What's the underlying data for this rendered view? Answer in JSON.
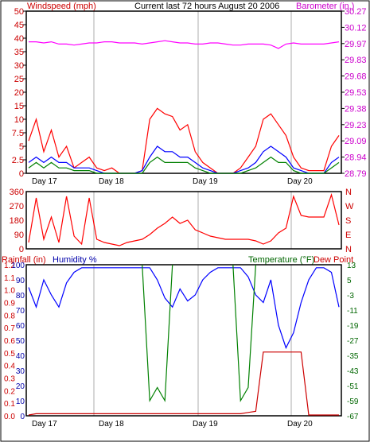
{
  "chart_data": [
    {
      "type": "line",
      "title": "Current last 72 hours August 20 2006",
      "left_axis": {
        "label": "Windspeed (mph)",
        "range": [
          0,
          50
        ],
        "ticks": [
          "0",
          "2.5",
          "5",
          "7.5",
          "10",
          "15",
          "20",
          "25",
          "30",
          "35",
          "40",
          "45",
          "50"
        ]
      },
      "right_axis": {
        "label": "Barometer (in.)",
        "range": [
          28.79,
          30.27
        ],
        "ticks": [
          "28.79",
          "28.94",
          "29.09",
          "29.23",
          "29.38",
          "29.53",
          "29.68",
          "29.83",
          "29.97",
          "30.12",
          "30.27"
        ]
      },
      "x_labels": [
        "Day 17",
        "Day 18",
        "Day 19",
        "Day 20"
      ],
      "series": [
        {
          "color": "#ff00ff",
          "axis": "right",
          "values": [
            29.99,
            29.99,
            29.98,
            29.99,
            29.97,
            29.97,
            29.96,
            29.97,
            29.98,
            29.98,
            29.99,
            29.99,
            29.98,
            29.98,
            29.98,
            29.97,
            29.98,
            29.99,
            30.0,
            29.99,
            29.98,
            29.98,
            29.97,
            29.97,
            29.98,
            29.98,
            29.97,
            29.96,
            29.96,
            29.97,
            29.97,
            29.97,
            29.96,
            29.93,
            29.97,
            29.98,
            29.97,
            29.97,
            29.97,
            29.97,
            29.98,
            29.99
          ]
        },
        {
          "color": "#ff0000",
          "axis": "left",
          "values": [
            6,
            10,
            4,
            8,
            3,
            5,
            1,
            2,
            3,
            1,
            0.5,
            1,
            0,
            0,
            0,
            0.5,
            10,
            14,
            12,
            11,
            8,
            9,
            4,
            2,
            1,
            0,
            0,
            0,
            1,
            3,
            5,
            10,
            12,
            9,
            7,
            3,
            1,
            0.5,
            0.5,
            0.5,
            5,
            7
          ]
        },
        {
          "color": "#0000ff",
          "axis": "left",
          "values": [
            2,
            3,
            2,
            3,
            2,
            2,
            1,
            1,
            1,
            0.5,
            0,
            0,
            0,
            0,
            0,
            0.5,
            3,
            5,
            4,
            4,
            3,
            3,
            2,
            1,
            0.5,
            0,
            0,
            0,
            0.5,
            1,
            2,
            4,
            5,
            4,
            3,
            1,
            0.5,
            0,
            0,
            0,
            2,
            3
          ]
        },
        {
          "color": "#008000",
          "axis": "left",
          "values": [
            1,
            2,
            1,
            2,
            1,
            1,
            0.5,
            0.5,
            0.5,
            0,
            0,
            0,
            0,
            0,
            0,
            0,
            2,
            3,
            2,
            2,
            2,
            2,
            1,
            0.5,
            0,
            0,
            0,
            0,
            0,
            0.5,
            1,
            2,
            3,
            2,
            2,
            0.5,
            0,
            0,
            0,
            0,
            1,
            2
          ]
        }
      ]
    },
    {
      "type": "line",
      "left_axis": {
        "range": [
          0,
          360
        ],
        "ticks": [
          "0",
          "90",
          "180",
          "270",
          "360"
        ]
      },
      "right_axis": {
        "ticks": [
          "N",
          "E",
          "S",
          "W",
          "N"
        ]
      },
      "x_labels": [],
      "series": [
        {
          "color": "#ff0000",
          "values": [
            40,
            320,
            60,
            200,
            40,
            330,
            80,
            30,
            320,
            60,
            40,
            30,
            20,
            40,
            50,
            60,
            90,
            130,
            160,
            200,
            160,
            180,
            120,
            100,
            80,
            70,
            60,
            60,
            60,
            60,
            50,
            30,
            50,
            100,
            130,
            330,
            210,
            200,
            200,
            200,
            340,
            150
          ]
        }
      ]
    },
    {
      "type": "line",
      "left_axis": {
        "label": "Rainfall (in)",
        "ticks": [
          "0.0",
          "0.1",
          "0.2",
          "0.3",
          "0.4",
          "0.5",
          "0.6",
          "0.7",
          "0.8",
          "0.9",
          "1.0",
          "1.1",
          "1.2"
        ]
      },
      "left_axis_2": {
        "label": "Humidity %",
        "range": [
          0,
          100
        ],
        "ticks": [
          "0",
          "10",
          "20",
          "30",
          "40",
          "50",
          "60",
          "70",
          "80",
          "90",
          "100"
        ]
      },
      "right_axis": {
        "label": "Temperature (°F)",
        "range": [
          -67,
          13
        ],
        "ticks": [
          "-67",
          "-59",
          "-51",
          "-43",
          "-35",
          "-27",
          "-19",
          "-11",
          "-3",
          "5",
          "13"
        ]
      },
      "right_label_2": "Dew Point",
      "x_labels": [
        "Day 17",
        "Day 18",
        "Day 19",
        "Day 20"
      ],
      "series": [
        {
          "color": "#0000ff",
          "axis": "humidity",
          "values": [
            85,
            72,
            90,
            80,
            72,
            88,
            95,
            98,
            98,
            98,
            98,
            98,
            98,
            98,
            98,
            98,
            98,
            90,
            78,
            72,
            84,
            76,
            80,
            90,
            95,
            98,
            98,
            98,
            98,
            92,
            80,
            75,
            90,
            60,
            45,
            55,
            75,
            90,
            98,
            98,
            95,
            72
          ]
        },
        {
          "color": "#008000",
          "axis": "temperature",
          "values": [
            null,
            null,
            null,
            null,
            null,
            null,
            null,
            null,
            null,
            null,
            null,
            null,
            null,
            null,
            null,
            13,
            -59,
            -52,
            -59,
            13,
            null,
            null,
            null,
            null,
            null,
            null,
            null,
            13,
            -59,
            -52,
            13,
            null,
            null,
            null,
            null,
            null,
            null,
            null,
            null,
            null,
            null,
            null
          ]
        },
        {
          "color": "#cc0000",
          "axis": "rainfall",
          "values": [
            0,
            0.01,
            0.01,
            0.01,
            0.01,
            0.01,
            0.01,
            0.01,
            0.01,
            0.01,
            0.01,
            0.01,
            0.01,
            0.01,
            0.01,
            0.01,
            0.01,
            0.01,
            0.01,
            0.01,
            0.01,
            0.01,
            0.01,
            0.01,
            0.01,
            0.01,
            0.01,
            0.01,
            0.01,
            0.02,
            0.03,
            0.5,
            0.5,
            0.5,
            0.5,
            0.5,
            0.5,
            0,
            0,
            0,
            0,
            0
          ]
        }
      ]
    }
  ]
}
